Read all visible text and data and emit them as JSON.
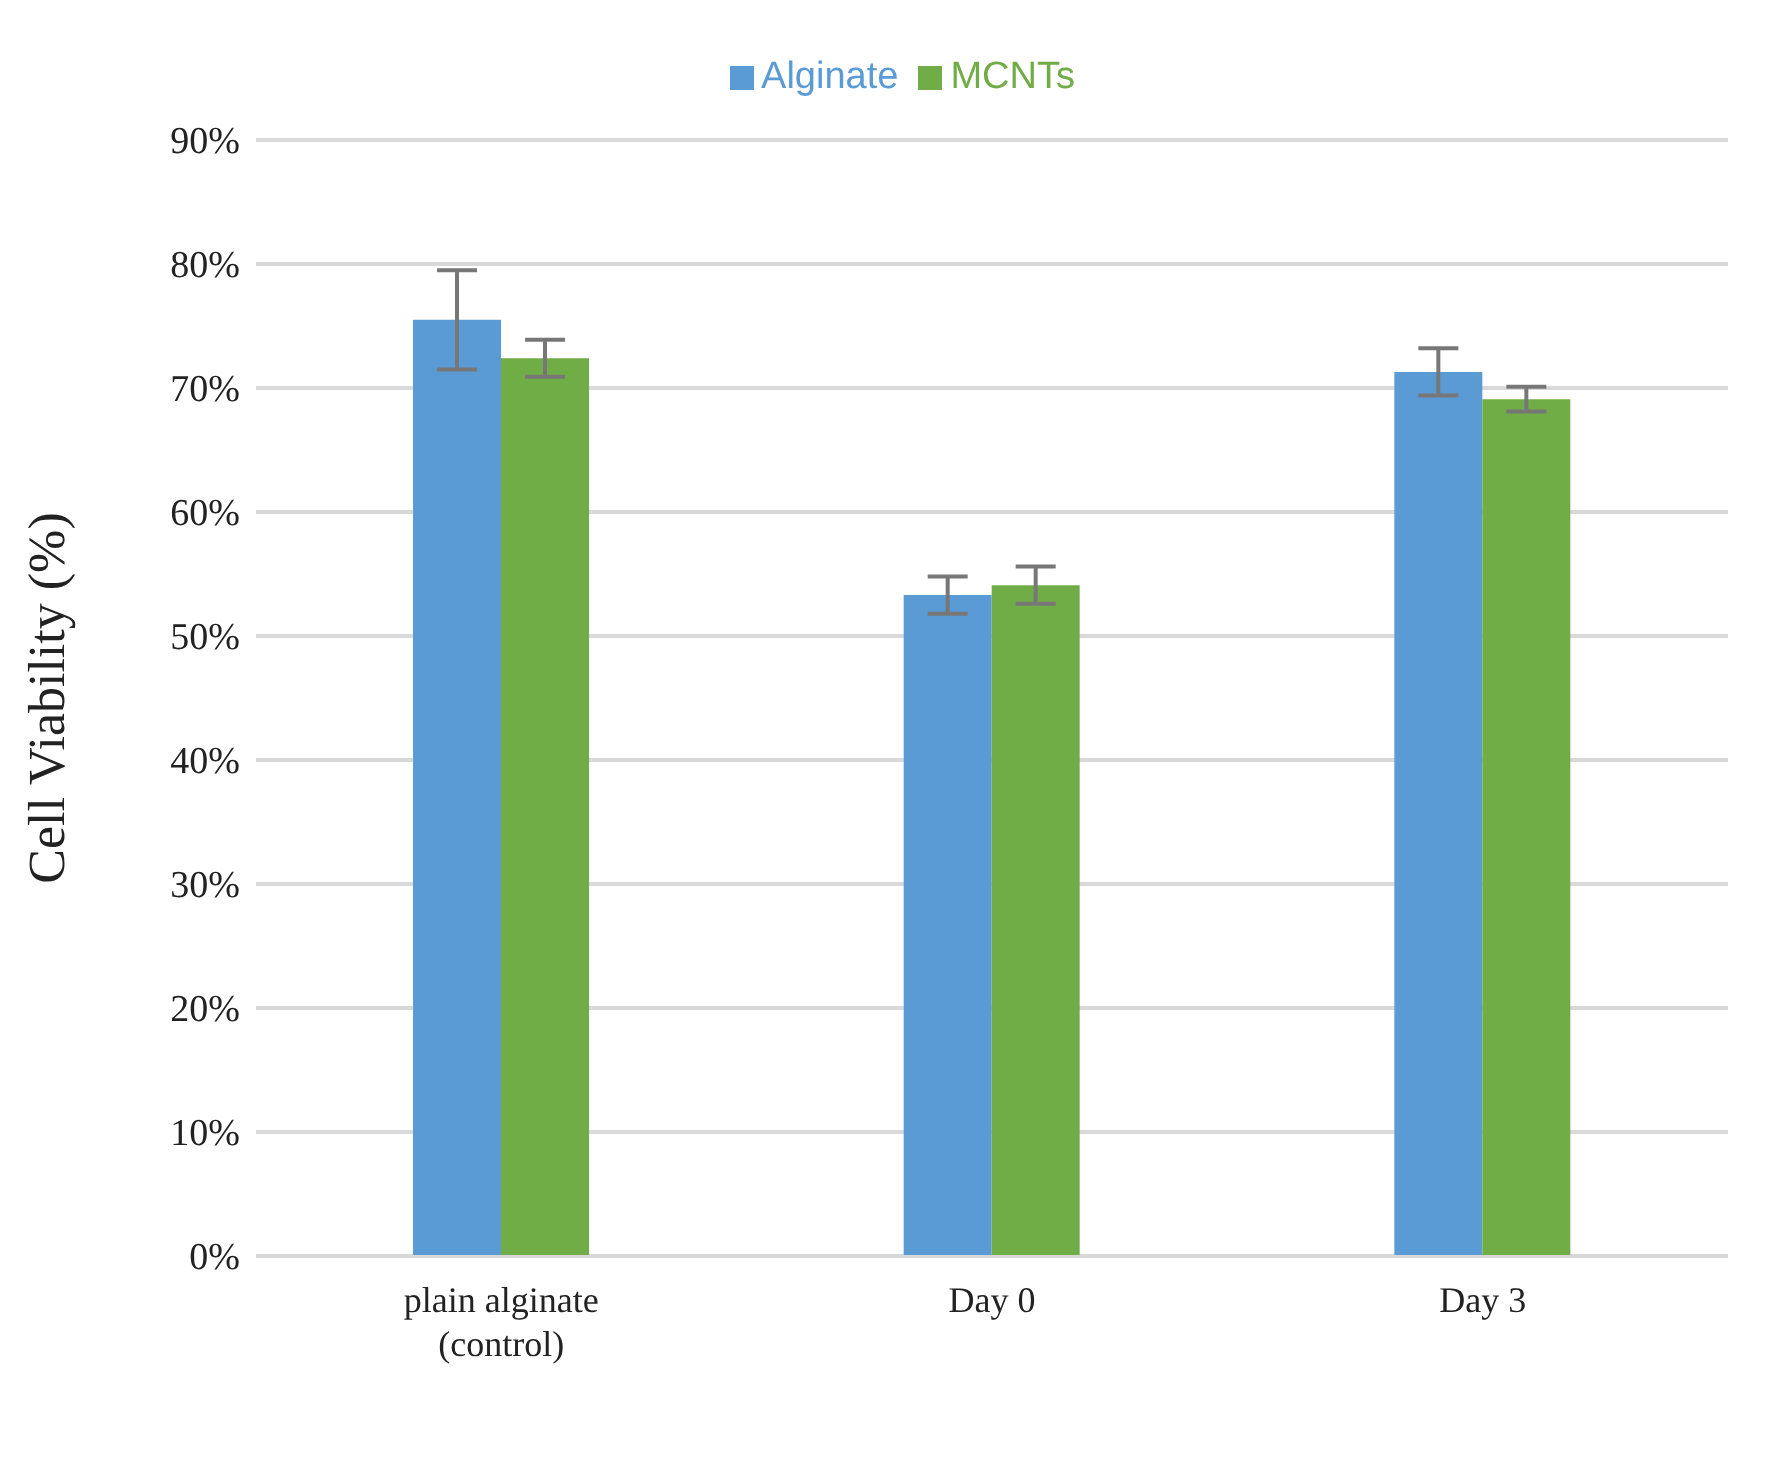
{
  "chart_data": {
    "type": "bar",
    "ylabel": "Cell Viability (%)",
    "categories": [
      "plain alginate (control)",
      "Day 0",
      "Day 3"
    ],
    "series": [
      {
        "name": "Alginate",
        "color": "#5b9bd5",
        "values": [
          75.5,
          53.3,
          71.3
        ],
        "errors": [
          4,
          1.5,
          1.9
        ]
      },
      {
        "name": "MCNTs",
        "color": "#70ad47",
        "values": [
          72.4,
          54.1,
          69.1
        ],
        "errors": [
          1.5,
          1.5,
          1
        ]
      }
    ],
    "ylim": [
      0,
      90
    ],
    "yticks": [
      {
        "value": 0,
        "label": "0%"
      },
      {
        "value": 10,
        "label": "10%"
      },
      {
        "value": 20,
        "label": "20%"
      },
      {
        "value": 30,
        "label": "30%"
      },
      {
        "value": 40,
        "label": "40%"
      },
      {
        "value": 50,
        "label": "50%"
      },
      {
        "value": 60,
        "label": "60%"
      },
      {
        "value": 70,
        "label": "70%"
      },
      {
        "value": 80,
        "label": "80%"
      },
      {
        "value": 90,
        "label": "90%"
      }
    ],
    "grid": "y",
    "legend": "top"
  }
}
